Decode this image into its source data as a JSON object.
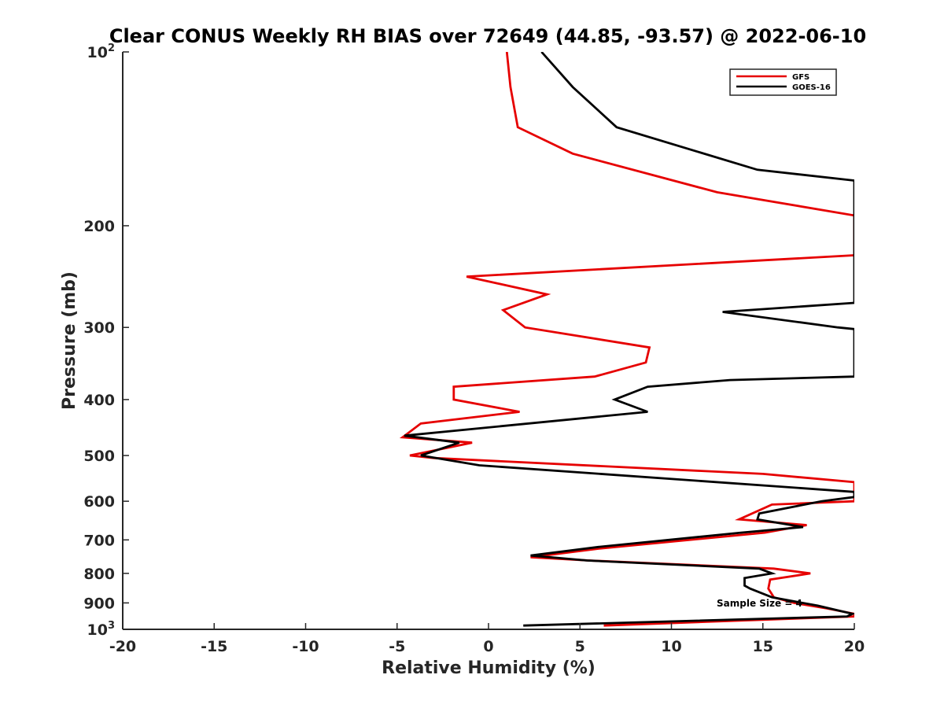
{
  "chart_data": {
    "type": "line",
    "title": "Clear CONUS Weekly RH BIAS over 72649 (44.85, -93.57) @ 2022-06-10",
    "xlabel": "Relative Humidity (%)",
    "ylabel": "Pressure (mb)",
    "xlim": [
      -20,
      20
    ],
    "ylim": [
      100,
      1000
    ],
    "y_scale": "log",
    "y_reversed": true,
    "grid": false,
    "legend_position": "top-right",
    "x_ticks": [
      "-20",
      "-15",
      "-10",
      "-5",
      "0",
      "5",
      "10",
      "15",
      "20"
    ],
    "y_ticks": [
      {
        "value": 100,
        "base": "10",
        "exp": "2"
      },
      {
        "value": 200,
        "base": "200",
        "exp": ""
      },
      {
        "value": 300,
        "base": "300",
        "exp": ""
      },
      {
        "value": 400,
        "base": "400",
        "exp": ""
      },
      {
        "value": 500,
        "base": "500",
        "exp": ""
      },
      {
        "value": 600,
        "base": "600",
        "exp": ""
      },
      {
        "value": 700,
        "base": "700",
        "exp": ""
      },
      {
        "value": 800,
        "base": "800",
        "exp": ""
      },
      {
        "value": 900,
        "base": "900",
        "exp": ""
      },
      {
        "value": 1000,
        "base": "10",
        "exp": "3"
      }
    ],
    "annotation": "Sample Size = 4",
    "series": [
      {
        "name": "GFS",
        "color": "#e60000",
        "points": [
          [
            1.0,
            100
          ],
          [
            1.2,
            115
          ],
          [
            1.6,
            135
          ],
          [
            4.6,
            150
          ],
          [
            12.5,
            175
          ],
          [
            20,
            192
          ],
          [
            20,
            225
          ],
          [
            -1.2,
            245
          ],
          [
            3.2,
            263
          ],
          [
            0.8,
            280
          ],
          [
            2.0,
            300
          ],
          [
            8.8,
            325
          ],
          [
            8.6,
            345
          ],
          [
            5.8,
            365
          ],
          [
            -1.9,
            380
          ],
          [
            -1.9,
            400
          ],
          [
            1.7,
            420
          ],
          [
            -3.7,
            440
          ],
          [
            -4.7,
            465
          ],
          [
            -0.9,
            475
          ],
          [
            -4.3,
            500
          ],
          [
            -3.0,
            505
          ],
          [
            15.0,
            538
          ],
          [
            20,
            556
          ],
          [
            20,
            600
          ],
          [
            15.5,
            608
          ],
          [
            13.7,
            645
          ],
          [
            17.4,
            660
          ],
          [
            15.1,
            680
          ],
          [
            6.0,
            725
          ],
          [
            2.3,
            750
          ],
          [
            5.5,
            760
          ],
          [
            15.6,
            785
          ],
          [
            17.6,
            800
          ],
          [
            15.4,
            820
          ],
          [
            15.3,
            850
          ],
          [
            15.6,
            880
          ],
          [
            16.7,
            900
          ],
          [
            18.5,
            920
          ],
          [
            20,
            940
          ],
          [
            20,
            950
          ],
          [
            6.3,
            985
          ]
        ]
      },
      {
        "name": "GOES-16",
        "color": "#000000",
        "points": [
          [
            2.9,
            100
          ],
          [
            4.6,
            115
          ],
          [
            7.0,
            135
          ],
          [
            14.7,
            160
          ],
          [
            20,
            167
          ],
          [
            20,
            272
          ],
          [
            12.8,
            282
          ],
          [
            19.1,
            300
          ],
          [
            20,
            302
          ],
          [
            20,
            365
          ],
          [
            13.2,
            370
          ],
          [
            8.7,
            380
          ],
          [
            6.9,
            400
          ],
          [
            8.7,
            420
          ],
          [
            -4.6,
            462
          ],
          [
            -1.6,
            475
          ],
          [
            -3.7,
            500
          ],
          [
            -0.5,
            520
          ],
          [
            20,
            578
          ],
          [
            20,
            590
          ],
          [
            18.2,
            600
          ],
          [
            14.8,
            630
          ],
          [
            14.7,
            645
          ],
          [
            17.2,
            665
          ],
          [
            13.8,
            680
          ],
          [
            6.0,
            720
          ],
          [
            2.3,
            745
          ],
          [
            5.4,
            760
          ],
          [
            14.8,
            785
          ],
          [
            15.5,
            800
          ],
          [
            14.0,
            815
          ],
          [
            14.0,
            840
          ],
          [
            14.3,
            850
          ],
          [
            15.5,
            880
          ],
          [
            18.0,
            910
          ],
          [
            19.9,
            940
          ],
          [
            19.6,
            950
          ],
          [
            1.9,
            985
          ]
        ]
      }
    ]
  }
}
